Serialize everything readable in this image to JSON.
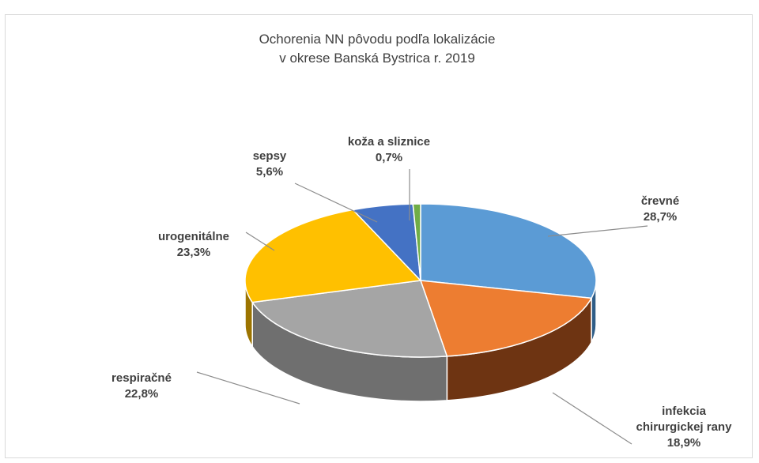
{
  "chart_data": {
    "type": "pie",
    "title": [
      "Ochorenia NN pôvodu podľa lokalizácie",
      "v okrese Banská Bystrica r. 2019"
    ],
    "unit": "%",
    "slices": [
      {
        "label": "črevné",
        "label_lines": [
          "črevné"
        ],
        "value": 28.7,
        "value_text": "28,7%",
        "color": "#5b9bd5",
        "side_color": "#2f5d87"
      },
      {
        "label": "infekcia chirurgickej rany",
        "label_lines": [
          "infekcia",
          "chirurgickej rany"
        ],
        "value": 18.9,
        "value_text": "18,9%",
        "color": "#ed7d31",
        "side_color": "#6e3412"
      },
      {
        "label": "respiračné",
        "label_lines": [
          "respiračné"
        ],
        "value": 22.8,
        "value_text": "22,8%",
        "color": "#a5a5a5",
        "side_color": "#6f6f6f"
      },
      {
        "label": "urogenitálne",
        "label_lines": [
          "urogenitálne"
        ],
        "value": 23.3,
        "value_text": "23,3%",
        "color": "#ffc000",
        "side_color": "#9c7400"
      },
      {
        "label": "sepsy",
        "label_lines": [
          "sepsy"
        ],
        "value": 5.6,
        "value_text": "5,6%",
        "color": "#4472c4",
        "side_color": "#24407a"
      },
      {
        "label": "koža a sliznice",
        "label_lines": [
          "koža a sliznice"
        ],
        "value": 0.7,
        "value_text": "0,7%",
        "color": "#70ad47",
        "side_color": "#3d6325"
      }
    ]
  }
}
